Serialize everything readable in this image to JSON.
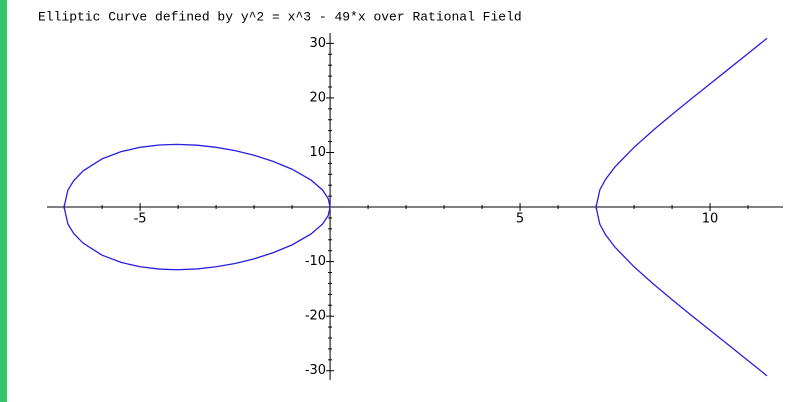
{
  "chart_data": {
    "type": "line",
    "title": "Elliptic Curve defined by y^2 = x^3 - 49*x over Rational Field",
    "xlim": [
      -7.45,
      11.92
    ],
    "ylim": [
      -31.7,
      31.9
    ],
    "xticks": [
      -5,
      5,
      10
    ],
    "yticks": [
      -30,
      -20,
      -10,
      10,
      20,
      30
    ],
    "x_minor_ticks": [
      -7,
      -6,
      -4,
      -3,
      -2,
      -1,
      1,
      2,
      3,
      4,
      6,
      7,
      8,
      9,
      11
    ],
    "y_minor_ticks": [
      -28,
      -26,
      -24,
      -22,
      -18,
      -16,
      -14,
      -12,
      -8,
      -6,
      -4,
      -2,
      2,
      4,
      6,
      8,
      12,
      14,
      16,
      18,
      22,
      24,
      26,
      28
    ],
    "series": [
      {
        "color": "#2a1fe0",
        "x": [
          -7,
          -6.9,
          -6.75,
          -6.5,
          -6,
          -5.5,
          -5,
          -4.5,
          -4.04,
          -3.5,
          -3,
          -2.5,
          -2,
          -1.5,
          -1,
          -0.5,
          -0.2,
          -0.05,
          0,
          -0.05,
          -0.2,
          -0.5,
          -1,
          -1.5,
          -2,
          -2.5,
          -3,
          -3.5,
          -4.04,
          -4.5,
          -5,
          -5.5,
          -6,
          -6.5,
          -6.75,
          -6.9,
          -7
        ],
        "y": [
          0,
          3.1,
          4.82,
          6.62,
          8.83,
          10.15,
          10.95,
          11.37,
          11.49,
          11.34,
          10.95,
          10.34,
          9.49,
          8.37,
          6.93,
          4.94,
          3.13,
          1.57,
          0,
          -1.57,
          -3.13,
          -4.94,
          -6.93,
          -8.37,
          -9.49,
          -10.34,
          -10.95,
          -11.34,
          -11.49,
          -11.37,
          -10.95,
          -10.15,
          -8.83,
          -6.62,
          -4.82,
          -3.1,
          0
        ]
      },
      {
        "color": "#2a1fe0",
        "x": [
          11.5,
          11,
          10.5,
          10,
          9.5,
          9,
          8.5,
          8,
          7.5,
          7.25,
          7.1,
          7,
          7.1,
          7.25,
          7.5,
          8,
          8.5,
          9,
          9.5,
          10,
          10.5,
          11,
          11.5
        ],
        "y": [
          30.94,
          28.14,
          25.36,
          22.58,
          19.8,
          16.97,
          14.06,
          10.95,
          7.37,
          5.08,
          3.16,
          0,
          -3.16,
          -5.08,
          -7.37,
          -10.95,
          -14.06,
          -16.97,
          -19.8,
          -22.58,
          -25.36,
          -28.14,
          -30.94
        ]
      }
    ]
  }
}
